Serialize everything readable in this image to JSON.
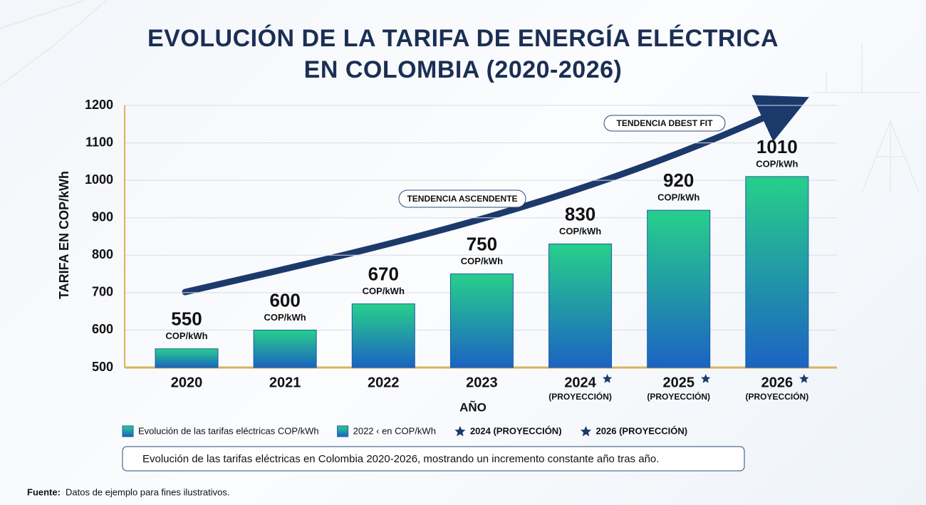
{
  "chart_data": {
    "type": "bar",
    "title": "EVOLUCIÓN DE LA TARIFA DE ENERGÍA ELÉCTRICA EN COLOMBIA (2020-2026)",
    "ylabel": "TARIFA EN COP/kWh",
    "xlabel": "AÑO",
    "categories": [
      "2020",
      "2021",
      "2022",
      "2023",
      "2024",
      "2025",
      "2026"
    ],
    "category_notes": [
      null,
      null,
      null,
      null,
      "(PROYECCIÓN)",
      "(PROYECCIÓN)",
      "(PROYECCIÓN)"
    ],
    "values": [
      550,
      600,
      670,
      750,
      830,
      920,
      1010
    ],
    "value_unit": "COP/kWh",
    "ylim": [
      500,
      1200
    ],
    "yticks": [
      500,
      600,
      700,
      800,
      900,
      1000,
      1100,
      1200
    ],
    "grid": true,
    "annotations": [
      "TENDENCIA ASCENDENTE",
      "TENDENCIA DBEST FIT"
    ],
    "legend": [
      {
        "label": "Evolución de las tarifas eléctricas COP/kWh",
        "marker": "square"
      },
      {
        "label": "2022 ‹ en COP/kWh",
        "marker": "square"
      },
      {
        "label": "2024 (PROYECCIÓN)",
        "marker": "star"
      },
      {
        "label": "2026 (PROYECCIÓN)",
        "marker": "star"
      }
    ],
    "caption": "Evolución de las tarifas eléctricas en Colombia 2020-2026, mostrando un incremento constante año tras año.",
    "source_label": "Fuente:",
    "source": "Datos de ejemplo para fines ilustrativos."
  }
}
